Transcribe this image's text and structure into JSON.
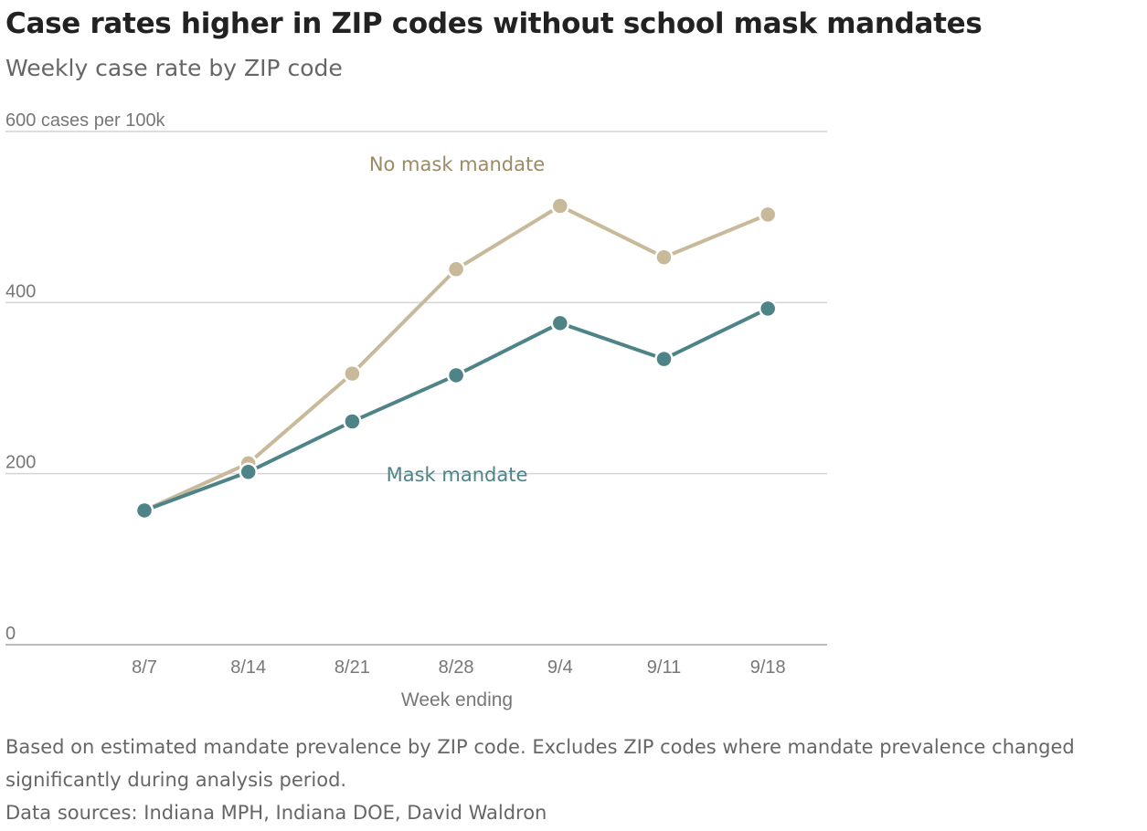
{
  "title": "Case rates higher in ZIP codes without school mask mandates",
  "subtitle": "Weekly case rate by ZIP code",
  "chart_data": {
    "type": "line",
    "categories": [
      "8/7",
      "8/14",
      "8/21",
      "8/28",
      "9/4",
      "9/11",
      "9/18"
    ],
    "series": [
      {
        "name": "No mask mandate",
        "color": "#c8b99a",
        "label_color": "#9a8a66",
        "values": [
          157,
          212,
          317,
          439,
          513,
          453,
          503
        ]
      },
      {
        "name": "Mask mandate",
        "color": "#4e8388",
        "label_color": "#4e8388",
        "values": [
          157,
          202,
          261,
          315,
          376,
          334,
          393
        ]
      }
    ],
    "y_ticks": [
      0,
      200,
      400,
      600
    ],
    "y_tick_labels": [
      "0",
      "200",
      "400",
      "600 cases per 100k"
    ],
    "ylim": [
      0,
      600
    ],
    "xlabel": "Week ending",
    "ylabel": "",
    "grid": true,
    "legend": "inline labels"
  },
  "footer": {
    "note": "Based on estimated mandate prevalence by ZIP code. Excludes ZIP codes where mandate prevalence changed significantly during analysis period.",
    "sources": "Data sources: Indiana MPH, Indiana DOE, David Waldron"
  }
}
